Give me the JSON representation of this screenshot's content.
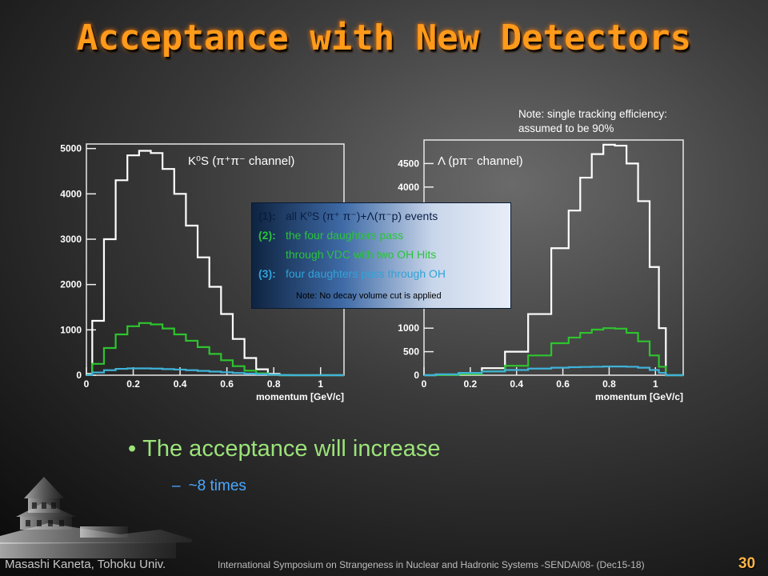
{
  "slide": {
    "title": "Acceptance with New Detectors",
    "note_top_line1": "Note: single tracking efficiency:",
    "note_top_line2": "assumed to be 90%",
    "bullet": "The acceptance will increase",
    "sub_bullet": "~8 times",
    "footer_left": "Masashi Kaneta, Tohoku Univ.",
    "footer_mid": "International Symposium on Strangeness in Nuclear and Hadronic Systems -SENDAI08- (Dec15-18)",
    "page_number": "30"
  },
  "legend": {
    "items": [
      {
        "num": "(1):",
        "text": "all K⁰S (π⁺ π⁻)+Λ(π⁻p) events",
        "color": "#0b1e44"
      },
      {
        "num": "(2):",
        "text": "the four daughters pass",
        "color": "#2ac43a"
      },
      {
        "num": "",
        "text": "through VDC with two OH Hits",
        "color": "#2ac43a"
      },
      {
        "num": "(3):",
        "text": "four daughters pass through OH",
        "color": "#2fa3d8"
      }
    ],
    "note": "Note: No decay volume cut is applied"
  },
  "chart_data": [
    {
      "type": "line",
      "title": "K⁰S (π⁺π⁻ channel)",
      "xlabel": "momentum [GeV/c]",
      "ylabel": "",
      "xlim": [
        0,
        1.1
      ],
      "ylim": [
        0,
        5100
      ],
      "xticks": [
        0,
        0.2,
        0.4,
        0.6,
        0.8,
        1
      ],
      "xtick_labels": [
        "0",
        "0.2",
        "0.4",
        "0.6",
        "0.8",
        "1"
      ],
      "yticks": [
        0,
        1000,
        2000,
        3000,
        4000,
        5000
      ],
      "ytick_labels": [
        "0",
        "1000",
        "2000",
        "3000",
        "4000",
        "5000"
      ],
      "x": [
        0,
        0.05,
        0.1,
        0.15,
        0.2,
        0.25,
        0.3,
        0.35,
        0.4,
        0.45,
        0.5,
        0.55,
        0.6,
        0.65,
        0.7,
        0.75,
        0.8,
        0.85,
        0.9,
        1.0,
        1.1
      ],
      "series": [
        {
          "color": "#ffffff",
          "values": [
            30,
            1200,
            3000,
            4300,
            4850,
            4950,
            4900,
            4550,
            4000,
            3300,
            2600,
            1950,
            1350,
            800,
            380,
            130,
            30,
            0,
            0,
            0,
            0
          ]
        },
        {
          "color": "#2ec42e",
          "values": [
            10,
            250,
            600,
            900,
            1080,
            1150,
            1120,
            1030,
            900,
            760,
            620,
            470,
            330,
            200,
            100,
            40,
            10,
            0,
            0,
            0,
            0
          ]
        },
        {
          "color": "#3fb3d9",
          "values": [
            5,
            60,
            110,
            140,
            150,
            150,
            145,
            135,
            125,
            110,
            95,
            80,
            65,
            50,
            35,
            22,
            12,
            5,
            0,
            0,
            0
          ]
        }
      ]
    },
    {
      "type": "line",
      "title": "Λ (pπ⁻ channel)",
      "xlabel": "momentum [GeV/c]",
      "ylabel": "",
      "xlim": [
        0,
        1.12
      ],
      "ylim": [
        0,
        5000
      ],
      "xticks": [
        0,
        0.2,
        0.4,
        0.6,
        0.8,
        1
      ],
      "xtick_labels": [
        "0",
        "0.2",
        "0.4",
        "0.6",
        "0.8",
        "1"
      ],
      "yticks": [
        0,
        500,
        1000,
        4000,
        4500
      ],
      "ytick_labels": [
        "0",
        "500",
        "1000",
        "4000",
        "4500"
      ],
      "x": [
        0,
        0.1,
        0.2,
        0.3,
        0.4,
        0.5,
        0.6,
        0.65,
        0.7,
        0.75,
        0.8,
        0.85,
        0.9,
        0.95,
        1.0,
        1.03,
        1.06,
        1.12
      ],
      "series": [
        {
          "color": "#ffffff",
          "values": [
            0,
            10,
            40,
            150,
            500,
            1300,
            2700,
            3500,
            4200,
            4700,
            4900,
            4880,
            4500,
            3700,
            2300,
            1000,
            0,
            0
          ]
        },
        {
          "color": "#2ec42e",
          "values": [
            0,
            5,
            25,
            80,
            200,
            420,
            680,
            800,
            900,
            970,
            1000,
            990,
            900,
            720,
            420,
            180,
            0,
            0
          ]
        },
        {
          "color": "#3fb3d9",
          "values": [
            0,
            20,
            50,
            80,
            110,
            140,
            160,
            170,
            175,
            180,
            185,
            185,
            180,
            160,
            110,
            50,
            0,
            0
          ]
        }
      ]
    }
  ]
}
